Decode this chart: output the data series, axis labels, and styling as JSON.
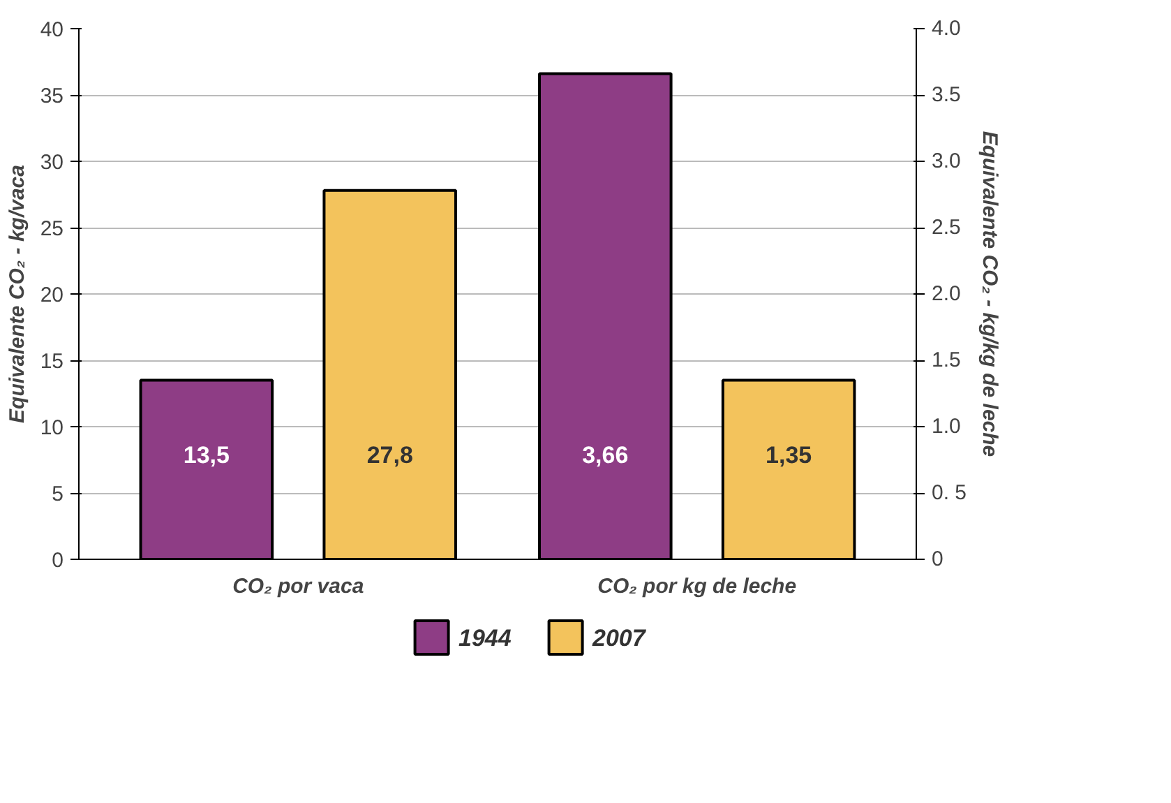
{
  "chart_data": {
    "type": "bar",
    "categories": [
      "CO₂ por vaca",
      "CO₂ por kg de leche"
    ],
    "ylabel": "Equivalente CO₂ - kg/vaca",
    "y2label": "Equivalente CO₂ - kg/kg de leche",
    "ylim": [
      0,
      40
    ],
    "yticks": [
      0,
      5,
      10,
      15,
      20,
      25,
      30,
      35,
      40
    ],
    "y2lim": [
      0,
      4
    ],
    "y2ticks": [
      0,
      {
        "value": 0.5,
        "label": "0. 5"
      },
      {
        "value": 1,
        "label": "1.0"
      },
      1.5,
      {
        "value": 2,
        "label": "2.0"
      },
      2.5,
      {
        "value": 3,
        "label": "3.0"
      },
      3.5,
      {
        "value": 4,
        "label": "4.0"
      }
    ],
    "series": [
      {
        "name": "1944",
        "color": "#8e3d85",
        "values": [
          13.5,
          null
        ],
        "value_labels": [
          "13,5",
          null
        ]
      },
      {
        "name": "2007",
        "color": "#f3c35c",
        "values": [
          27.8,
          null
        ],
        "value_labels": [
          "27,8",
          null
        ]
      },
      {
        "color": "#8e3d85",
        "values": [
          null,
          3.66
        ],
        "axis": "y2",
        "value_labels": [
          null,
          "3,66"
        ]
      },
      {
        "color": "#f3c35c",
        "values": [
          null,
          1.35
        ],
        "axis": "y2",
        "value_labels": [
          null,
          "1,35"
        ]
      }
    ],
    "grid": "y",
    "legend": "bottom"
  }
}
